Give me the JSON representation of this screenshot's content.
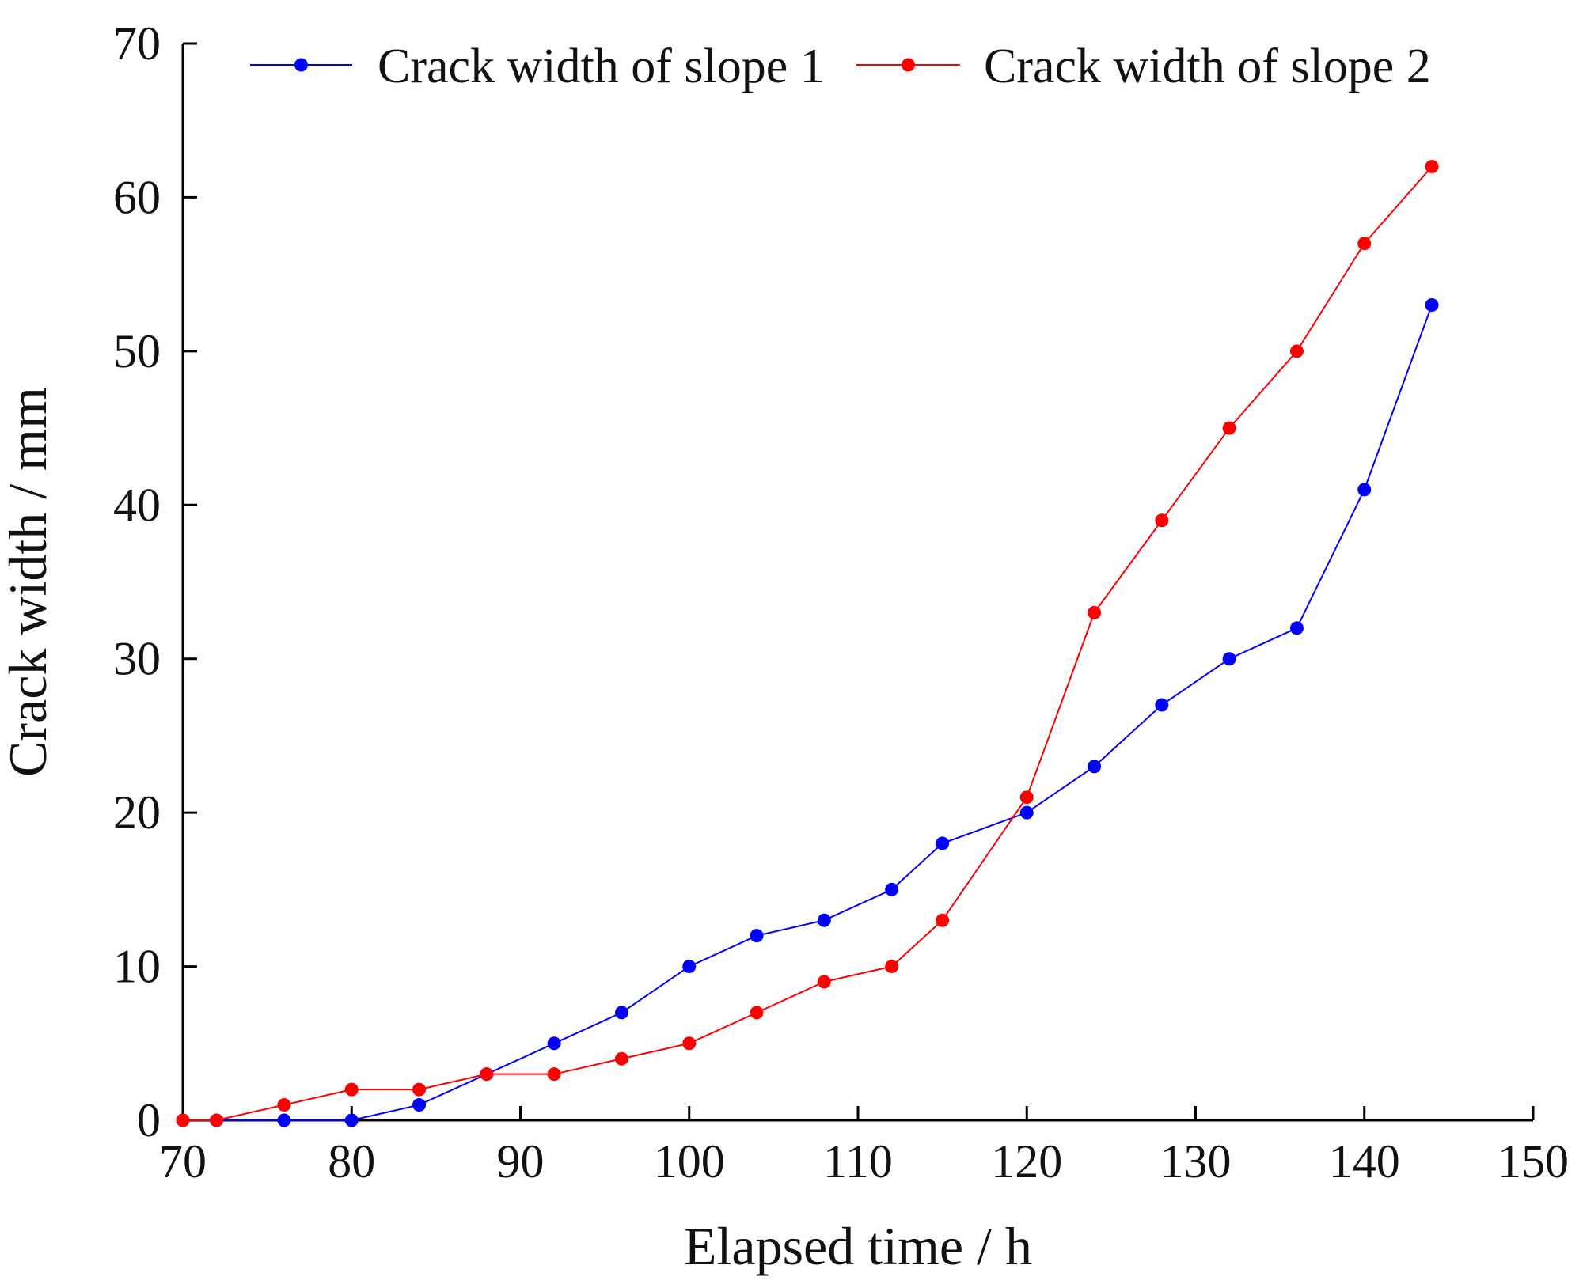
{
  "chart_data": {
    "type": "line",
    "title": "",
    "xlabel": "Elapsed time / h",
    "ylabel": "Crack width / mm",
    "xlim": [
      70,
      150
    ],
    "ylim": [
      0,
      70
    ],
    "xticks": [
      70,
      80,
      90,
      100,
      110,
      120,
      130,
      140,
      150
    ],
    "yticks": [
      0,
      10,
      20,
      30,
      40,
      50,
      60,
      70
    ],
    "grid": false,
    "legend_position": "top",
    "series": [
      {
        "name": "Crack width of slope 1",
        "color": "#0000ff",
        "x": [
          70,
          72,
          76,
          80,
          84,
          88,
          92,
          96,
          100,
          104,
          108,
          112,
          115,
          120,
          124,
          128,
          132,
          136,
          140,
          144
        ],
        "y": [
          0,
          0,
          0,
          0,
          1,
          3,
          5,
          7,
          10,
          12,
          13,
          15,
          18,
          20,
          23,
          27,
          30,
          32,
          41,
          53
        ]
      },
      {
        "name": "Crack width of slope 2",
        "color": "#ff0000",
        "x": [
          70,
          72,
          76,
          80,
          84,
          88,
          92,
          96,
          100,
          104,
          108,
          112,
          115,
          120,
          124,
          128,
          132,
          136,
          140,
          144
        ],
        "y": [
          0,
          0,
          1,
          2,
          2,
          3,
          3,
          4,
          5,
          7,
          9,
          10,
          13,
          21,
          33,
          39,
          45,
          50,
          57,
          62
        ]
      }
    ]
  }
}
